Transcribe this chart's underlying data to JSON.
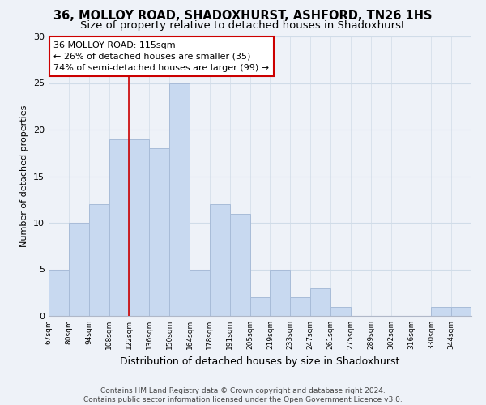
{
  "title": "36, MOLLOY ROAD, SHADOXHURST, ASHFORD, TN26 1HS",
  "subtitle": "Size of property relative to detached houses in Shadoxhurst",
  "xlabel": "Distribution of detached houses by size in Shadoxhurst",
  "ylabel": "Number of detached properties",
  "bar_labels": [
    "67sqm",
    "80sqm",
    "94sqm",
    "108sqm",
    "122sqm",
    "136sqm",
    "150sqm",
    "164sqm",
    "178sqm",
    "191sqm",
    "205sqm",
    "219sqm",
    "233sqm",
    "247sqm",
    "261sqm",
    "275sqm",
    "289sqm",
    "302sqm",
    "316sqm",
    "330sqm",
    "344sqm"
  ],
  "bar_values": [
    5,
    10,
    12,
    19,
    19,
    18,
    25,
    5,
    12,
    11,
    2,
    5,
    2,
    3,
    1,
    0,
    0,
    0,
    0,
    1,
    1
  ],
  "bar_color": "#c8d9f0",
  "bar_edge_color": "#a8bcd8",
  "annotation_line1": "36 MOLLOY ROAD: 115sqm",
  "annotation_line2": "← 26% of detached houses are smaller (35)",
  "annotation_line3": "74% of semi-detached houses are larger (99) →",
  "annotation_box_facecolor": "#ffffff",
  "annotation_box_edgecolor": "#cc0000",
  "ylim": [
    0,
    30
  ],
  "yticks": [
    0,
    5,
    10,
    15,
    20,
    25,
    30
  ],
  "grid_color": "#d0dce8",
  "background_color": "#eef2f8",
  "footer_text": "Contains HM Land Registry data © Crown copyright and database right 2024.\nContains public sector information licensed under the Open Government Licence v3.0.",
  "title_fontsize": 10.5,
  "subtitle_fontsize": 9.5,
  "annotation_fontsize": 8,
  "footer_fontsize": 6.5,
  "ylabel_fontsize": 8,
  "xlabel_fontsize": 9
}
